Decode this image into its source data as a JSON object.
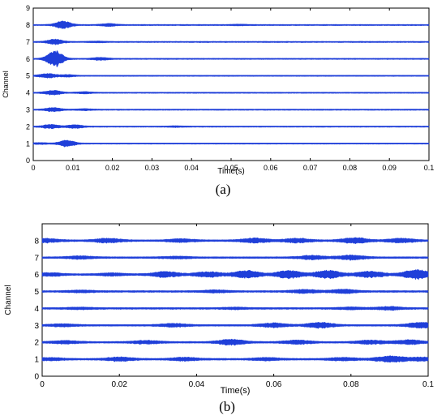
{
  "chart_data": [
    {
      "type": "line",
      "panel_label": "(a)",
      "xlabel": "Time(s)",
      "ylabel": "Channel",
      "xlim": [
        0,
        0.1
      ],
      "ylim": [
        0,
        9
      ],
      "xticks": [
        "0",
        "0.01",
        "0.02",
        "0.03",
        "0.04",
        "0.05",
        "0.06",
        "0.07",
        "0.08",
        "0.09",
        "0.1"
      ],
      "yticks": [
        "0",
        "1",
        "2",
        "3",
        "4",
        "5",
        "6",
        "7",
        "8",
        "9"
      ],
      "grid": false,
      "color": "#1f3fd9",
      "series": [
        {
          "channel": 1,
          "bursts": [
            [
              0.0085,
              0.37
            ],
            [
              0.0015,
              0.06
            ]
          ]
        },
        {
          "channel": 2,
          "bursts": [
            [
              0.0045,
              0.22
            ],
            [
              0.0105,
              0.18
            ],
            [
              0.036,
              0.05
            ]
          ]
        },
        {
          "channel": 3,
          "bursts": [
            [
              0.005,
              0.21
            ],
            [
              0.013,
              0.07
            ]
          ]
        },
        {
          "channel": 4,
          "bursts": [
            [
              0.005,
              0.26
            ],
            [
              0.013,
              0.08
            ]
          ]
        },
        {
          "channel": 5,
          "bursts": [
            [
              0.0035,
              0.24
            ],
            [
              0.0085,
              0.1
            ]
          ]
        },
        {
          "channel": 6,
          "bursts": [
            [
              0.0055,
              0.95
            ],
            [
              0.017,
              0.15
            ]
          ]
        },
        {
          "channel": 7,
          "bursts": [
            [
              0.0055,
              0.3
            ],
            [
              0.016,
              0.06
            ]
          ]
        },
        {
          "channel": 8,
          "bursts": [
            [
              0.0075,
              0.45
            ],
            [
              0.019,
              0.14
            ],
            [
              0.052,
              0.05
            ]
          ]
        }
      ]
    },
    {
      "type": "line",
      "panel_label": "(b)",
      "xlabel": "Time(s)",
      "ylabel": "Channel",
      "xlim": [
        0,
        0.1
      ],
      "ylim": [
        0,
        9
      ],
      "xticks": [
        "0",
        "0.02",
        "0.04",
        "0.06",
        "0.08",
        "0.1"
      ],
      "yticks": [
        "0",
        "1",
        "2",
        "3",
        "4",
        "5",
        "6",
        "7",
        "8"
      ],
      "grid": false,
      "color": "#1f3fd9",
      "series": [
        {
          "channel": 1,
          "bursts": [
            [
              0.002,
              0.15
            ],
            [
              0.02,
              0.2
            ],
            [
              0.037,
              0.17
            ],
            [
              0.058,
              0.14
            ],
            [
              0.078,
              0.16
            ],
            [
              0.09,
              0.33
            ],
            [
              0.098,
              0.2
            ]
          ]
        },
        {
          "channel": 2,
          "bursts": [
            [
              0.006,
              0.15
            ],
            [
              0.027,
              0.16
            ],
            [
              0.049,
              0.3
            ],
            [
              0.066,
              0.2
            ],
            [
              0.085,
              0.2
            ],
            [
              0.095,
              0.24
            ]
          ]
        },
        {
          "channel": 3,
          "bursts": [
            [
              0.005,
              0.12
            ],
            [
              0.034,
              0.16
            ],
            [
              0.06,
              0.22
            ],
            [
              0.072,
              0.3
            ],
            [
              0.098,
              0.3
            ]
          ]
        },
        {
          "channel": 4,
          "bursts": [
            [
              0.01,
              0.08
            ],
            [
              0.05,
              0.08
            ],
            [
              0.08,
              0.1
            ],
            [
              0.09,
              0.16
            ]
          ]
        },
        {
          "channel": 5,
          "bursts": [
            [
              0.01,
              0.1
            ],
            [
              0.045,
              0.12
            ],
            [
              0.068,
              0.18
            ],
            [
              0.078,
              0.2
            ]
          ]
        },
        {
          "channel": 6,
          "bursts": [
            [
              0.002,
              0.16
            ],
            [
              0.018,
              0.14
            ],
            [
              0.032,
              0.3
            ],
            [
              0.043,
              0.28
            ],
            [
              0.053,
              0.42
            ],
            [
              0.064,
              0.42
            ],
            [
              0.074,
              0.44
            ],
            [
              0.085,
              0.35
            ],
            [
              0.097,
              0.55
            ]
          ]
        },
        {
          "channel": 7,
          "bursts": [
            [
              0.01,
              0.14
            ],
            [
              0.035,
              0.1
            ],
            [
              0.07,
              0.2
            ],
            [
              0.08,
              0.24
            ]
          ]
        },
        {
          "channel": 8,
          "bursts": [
            [
              0.001,
              0.2
            ],
            [
              0.017,
              0.22
            ],
            [
              0.036,
              0.17
            ],
            [
              0.055,
              0.26
            ],
            [
              0.066,
              0.22
            ],
            [
              0.081,
              0.3
            ],
            [
              0.093,
              0.22
            ]
          ]
        }
      ]
    }
  ]
}
